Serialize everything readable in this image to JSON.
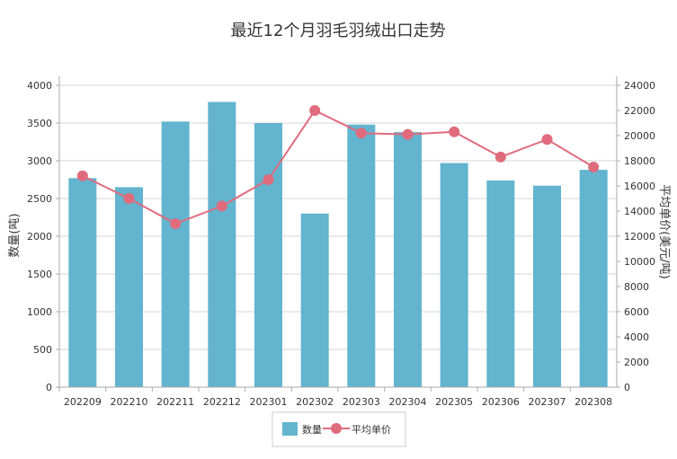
{
  "chart_data": {
    "type": "bar",
    "title": "最近12个月羽毛羽绒出口走势",
    "categories": [
      "202209",
      "202210",
      "202211",
      "202212",
      "202301",
      "202302",
      "202303",
      "202304",
      "202305",
      "202306",
      "202307",
      "202308"
    ],
    "series": [
      {
        "name": "数量",
        "type": "bar",
        "axis": "left",
        "color": "#62b4cf",
        "values": [
          2770,
          2650,
          3520,
          3780,
          3500,
          2300,
          3480,
          3380,
          2970,
          2740,
          2670,
          2880
        ]
      },
      {
        "name": "平均单价",
        "type": "line",
        "axis": "right",
        "color": "#e06b7c",
        "values": [
          16800,
          15000,
          13000,
          14400,
          16500,
          22000,
          20200,
          20100,
          20300,
          18300,
          19700,
          17500
        ]
      }
    ],
    "ylabel": "数量(吨)",
    "y2label": "平均单价(美元/吨)",
    "ylim": [
      0,
      4000
    ],
    "y2lim": [
      0,
      24000
    ],
    "yticks": [
      "0",
      "500",
      "1000",
      "1500",
      "2000",
      "2500",
      "3000",
      "3500",
      "4000"
    ],
    "y2ticks": [
      "0",
      "2000",
      "4000",
      "6000",
      "8000",
      "10000",
      "12000",
      "14000",
      "16000",
      "18000",
      "20000",
      "22000",
      "24000"
    ],
    "grid": true,
    "legend_position": "bottom"
  }
}
